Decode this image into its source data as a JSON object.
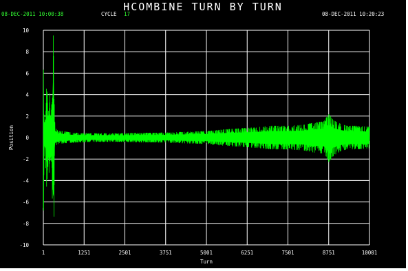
{
  "header": {
    "title": "HCOMBINE TURN BY TURN",
    "start_timestamp": "08-DEC-2011 10:00:38",
    "end_timestamp": "08-DEC-2011 10:20:23",
    "cycle_label": "CYCLE",
    "cycle_value": "17"
  },
  "colors": {
    "background": "#000000",
    "grid": "#ffffff",
    "trace": "#00ff00",
    "axis_text": "#ffffff"
  },
  "chart_data": {
    "type": "line",
    "title": "HCOMBINE TURN BY TURN",
    "xlabel": "Turn",
    "ylabel": "Position",
    "xlim": [
      1,
      10001
    ],
    "ylim": [
      -10,
      10
    ],
    "grid": true,
    "x_tick_labels": [
      "1",
      "1251",
      "2501",
      "3751",
      "5001",
      "6251",
      "7501",
      "8751",
      "10001"
    ],
    "y_tick_labels": [
      "-10",
      "-8",
      "-6",
      "-4",
      "-2",
      "0",
      "2",
      "4",
      "6",
      "8",
      "10"
    ],
    "series": [
      {
        "color": "#00ff00",
        "envelope": {
          "x": [
            1,
            10,
            20,
            30,
            60,
            100,
            150,
            200,
            260,
            300,
            320,
            340,
            360,
            380,
            400,
            450,
            500,
            600,
            800,
            1000,
            1500,
            2000,
            2500,
            3000,
            3500,
            4000,
            4500,
            5000,
            5500,
            6000,
            6500,
            7000,
            7500,
            8000,
            8300,
            8600,
            8750,
            8900,
            9100,
            9300,
            9600,
            10001
          ],
          "upper": [
            10,
            10,
            3.2,
            1.6,
            1.8,
            4.8,
            3.6,
            4.2,
            3.0,
            10,
            9.3,
            2.6,
            1.2,
            0.9,
            0.8,
            0.7,
            0.6,
            0.6,
            0.5,
            0.45,
            0.4,
            0.4,
            0.4,
            0.45,
            0.45,
            0.5,
            0.55,
            0.6,
            0.75,
            0.85,
            0.95,
            1.1,
            1.1,
            1.2,
            1.4,
            1.5,
            2.2,
            1.6,
            1.3,
            1.1,
            1.1,
            1.0
          ],
          "lower": [
            -10,
            -10,
            -3.4,
            -1.4,
            -1.8,
            -4.6,
            -3.2,
            -4.0,
            -2.8,
            -10,
            -9.5,
            -2.4,
            -1.0,
            -0.8,
            -0.7,
            -0.6,
            -0.55,
            -0.55,
            -0.5,
            -0.45,
            -0.4,
            -0.4,
            -0.4,
            -0.45,
            -0.45,
            -0.5,
            -0.55,
            -0.6,
            -0.75,
            -0.85,
            -0.95,
            -1.1,
            -1.1,
            -1.2,
            -1.4,
            -1.5,
            -2.3,
            -1.7,
            -1.3,
            -1.1,
            -1.1,
            -1.0
          ]
        }
      }
    ]
  }
}
